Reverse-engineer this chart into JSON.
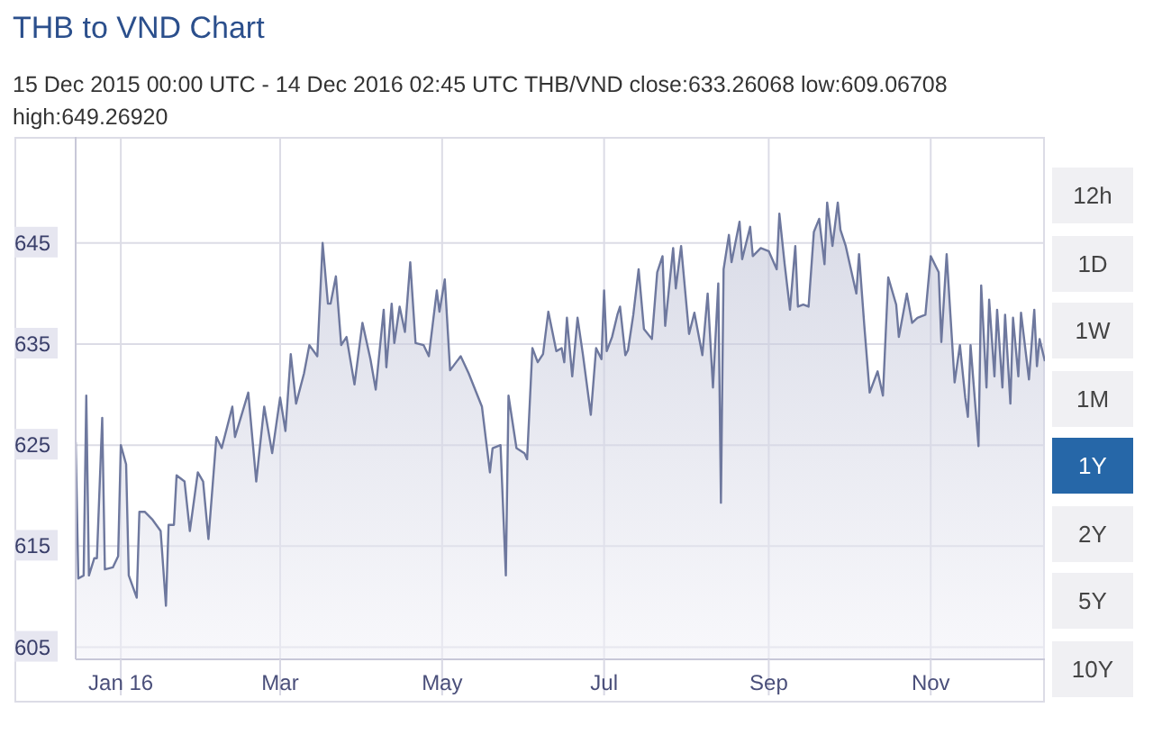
{
  "chart_data": {
    "type": "area",
    "title": "THB to VND Chart",
    "subtitle": "15 Dec 2015 00:00 UTC - 14 Dec 2016 02:45 UTC   THB/VND close:633.26068 low:609.06708 high:649.26920",
    "annotations": [
      "12h",
      "1D",
      "1W",
      "1M",
      "1Y",
      "2Y",
      "5Y",
      "10Y"
    ],
    "xlim": [
      "2015-12-15",
      "2016-12-14"
    ],
    "xticks": [
      {
        "value": "2016-01-01",
        "label": "Jan 16"
      },
      {
        "value": "2016-03-01",
        "label": "Mar"
      },
      {
        "value": "2016-05-01",
        "label": "May"
      },
      {
        "value": "2016-07-01",
        "label": "Jul"
      },
      {
        "value": "2016-09-01",
        "label": "Sep"
      },
      {
        "value": "2016-11-01",
        "label": "Nov"
      }
    ],
    "ylim": [
      603.8,
      655.5
    ],
    "yticks": [
      605,
      615,
      625,
      635,
      645
    ],
    "grid": true,
    "legend": false,
    "marker": "none",
    "line_style": "solid",
    "x": [
      "2015-12-15",
      "2015-12-16",
      "2015-12-18",
      "2015-12-19",
      "2015-12-20",
      "2015-12-22",
      "2015-12-23",
      "2015-12-25",
      "2015-12-26",
      "2015-12-29",
      "2015-12-31",
      "2016-01-01",
      "2016-01-03",
      "2016-01-04",
      "2016-01-07",
      "2016-01-08",
      "2016-01-10",
      "2016-01-13",
      "2016-01-16",
      "2016-01-18",
      "2016-01-19",
      "2016-01-21",
      "2016-01-22",
      "2016-01-25",
      "2016-01-27",
      "2016-01-30",
      "2016-02-01",
      "2016-02-03",
      "2016-02-06",
      "2016-02-08",
      "2016-02-12",
      "2016-02-13",
      "2016-02-18",
      "2016-02-21",
      "2016-02-24",
      "2016-02-27",
      "2016-03-01",
      "2016-03-03",
      "2016-03-05",
      "2016-03-07",
      "2016-03-10",
      "2016-03-12",
      "2016-03-15",
      "2016-03-17",
      "2016-03-19",
      "2016-03-20",
      "2016-03-22",
      "2016-03-24",
      "2016-03-26",
      "2016-03-29",
      "2016-04-01",
      "2016-04-04",
      "2016-04-06",
      "2016-04-09",
      "2016-04-10",
      "2016-04-12",
      "2016-04-13",
      "2016-04-15",
      "2016-04-17",
      "2016-04-19",
      "2016-04-21",
      "2016-04-24",
      "2016-04-26",
      "2016-04-29",
      "2016-04-30",
      "2016-05-02",
      "2016-05-04",
      "2016-05-08",
      "2016-05-11",
      "2016-05-16",
      "2016-05-19",
      "2016-05-20",
      "2016-05-23",
      "2016-05-25",
      "2016-05-26",
      "2016-05-29",
      "2016-06-01",
      "2016-06-02",
      "2016-06-04",
      "2016-06-06",
      "2016-06-08",
      "2016-06-10",
      "2016-06-13",
      "2016-06-15",
      "2016-06-16",
      "2016-06-17",
      "2016-06-19",
      "2016-06-21",
      "2016-06-23",
      "2016-06-26",
      "2016-06-28",
      "2016-06-30",
      "2016-07-01",
      "2016-07-02",
      "2016-07-04",
      "2016-07-06",
      "2016-07-07",
      "2016-07-09",
      "2016-07-10",
      "2016-07-12",
      "2016-07-14",
      "2016-07-16",
      "2016-07-19",
      "2016-07-21",
      "2016-07-23",
      "2016-07-24",
      "2016-07-27",
      "2016-07-28",
      "2016-07-30",
      "2016-08-02",
      "2016-08-04",
      "2016-08-07",
      "2016-08-09",
      "2016-08-11",
      "2016-08-13",
      "2016-08-14",
      "2016-08-15",
      "2016-08-17",
      "2016-08-18",
      "2016-08-21",
      "2016-08-22",
      "2016-08-25",
      "2016-08-26",
      "2016-08-29",
      "2016-09-01",
      "2016-09-04",
      "2016-09-05",
      "2016-09-07",
      "2016-09-09",
      "2016-09-11",
      "2016-09-12",
      "2016-09-14",
      "2016-09-16",
      "2016-09-18",
      "2016-09-20",
      "2016-09-22",
      "2016-09-23",
      "2016-09-25",
      "2016-09-27",
      "2016-09-28",
      "2016-09-30",
      "2016-10-04",
      "2016-10-05",
      "2016-10-07",
      "2016-10-09",
      "2016-10-12",
      "2016-10-14",
      "2016-10-16",
      "2016-10-19",
      "2016-10-20",
      "2016-10-23",
      "2016-10-25",
      "2016-10-27",
      "2016-10-30",
      "2016-11-01",
      "2016-11-04",
      "2016-11-05",
      "2016-11-07",
      "2016-11-10",
      "2016-11-12",
      "2016-11-14",
      "2016-11-15",
      "2016-11-16",
      "2016-11-19",
      "2016-11-20",
      "2016-11-22",
      "2016-11-23",
      "2016-11-25",
      "2016-11-26",
      "2016-11-28",
      "2016-11-29",
      "2016-12-01",
      "2016-12-02",
      "2016-12-04",
      "2016-12-05",
      "2016-12-08",
      "2016-12-10",
      "2016-12-11",
      "2016-12-12",
      "2016-12-14"
    ],
    "series": [
      {
        "color": "#6e789e",
        "values": [
          625.3,
          611.8,
          612.1,
          629.9,
          612.1,
          613.8,
          613.8,
          627.7,
          612.7,
          612.9,
          614.0,
          625.0,
          623.1,
          612.1,
          609.9,
          618.4,
          618.4,
          617.6,
          616.5,
          609.1,
          617.1,
          617.1,
          622.0,
          621.4,
          616.5,
          622.3,
          621.4,
          615.7,
          625.8,
          624.7,
          628.8,
          625.8,
          630.2,
          621.4,
          628.8,
          624.2,
          629.7,
          626.4,
          634.0,
          629.1,
          632.1,
          634.9,
          633.8,
          645.0,
          639.0,
          639.0,
          641.7,
          634.9,
          635.7,
          631.0,
          637.1,
          633.5,
          630.5,
          638.4,
          632.7,
          639.0,
          635.1,
          638.7,
          636.2,
          643.1,
          635.1,
          634.9,
          633.8,
          640.3,
          638.2,
          641.4,
          632.4,
          633.8,
          632.1,
          628.8,
          622.3,
          624.7,
          625.0,
          612.1,
          629.9,
          624.7,
          624.2,
          623.6,
          634.6,
          633.2,
          634.0,
          638.2,
          634.3,
          634.6,
          633.2,
          637.6,
          631.8,
          637.6,
          634.0,
          628.0,
          634.6,
          633.5,
          640.3,
          634.3,
          635.7,
          637.9,
          638.7,
          633.9,
          634.4,
          637.9,
          642.4,
          636.5,
          635.5,
          642.1,
          643.7,
          636.8,
          644.5,
          640.5,
          644.7,
          636.0,
          638.1,
          633.9,
          640.0,
          630.7,
          641.0,
          619.3,
          642.4,
          645.8,
          643.1,
          647.1,
          643.4,
          646.6,
          643.7,
          644.5,
          644.2,
          642.4,
          647.9,
          642.9,
          638.4,
          644.7,
          638.7,
          638.9,
          638.7,
          646.1,
          647.4,
          642.9,
          649.0,
          644.7,
          649.0,
          646.3,
          644.7,
          640.0,
          643.9,
          636.8,
          630.2,
          632.3,
          629.9,
          641.6,
          638.9,
          635.7,
          640.0,
          637.1,
          637.6,
          637.9,
          643.7,
          642.1,
          635.2,
          643.9,
          631.2,
          634.9,
          629.7,
          627.8,
          634.9,
          624.9,
          640.8,
          630.7,
          639.4,
          631.8,
          638.4,
          630.7,
          637.9,
          629.1,
          637.6,
          631.8,
          638.1,
          631.5,
          638.4,
          632.8,
          635.5,
          633.3
        ]
      }
    ]
  }
}
